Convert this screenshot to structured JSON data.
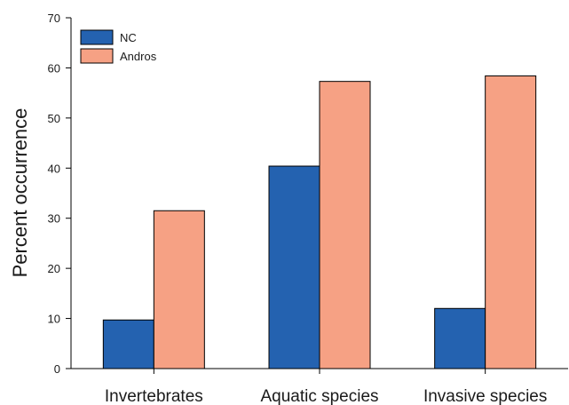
{
  "chart_data": {
    "type": "bar",
    "title": "",
    "xlabel": "",
    "ylabel": "Percent occurrence",
    "ylim": [
      0,
      70
    ],
    "yticks": [
      0,
      10,
      20,
      30,
      40,
      50,
      60,
      70
    ],
    "categories": [
      "Invertebrates",
      "Aquatic species",
      "Invasive species"
    ],
    "series": [
      {
        "name": "NC",
        "color": "#2462b0",
        "values": [
          9.7,
          40.4,
          12.0
        ]
      },
      {
        "name": "Andros",
        "color": "#f6a184",
        "values": [
          31.5,
          57.3,
          58.4
        ]
      }
    ],
    "grid": false,
    "legend_position": "top-left"
  }
}
